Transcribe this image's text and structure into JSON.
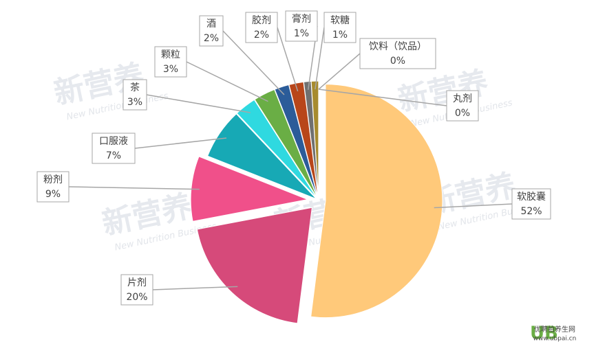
{
  "chart_data": {
    "type": "pie",
    "categories": [
      "软胶囊",
      "片剂",
      "粉剂",
      "口服液",
      "茶",
      "颗粒",
      "酒",
      "胶剂",
      "膏剂",
      "软糖",
      "饮料（饮品）",
      "丸剂"
    ],
    "values": [
      52,
      20,
      9,
      7,
      3,
      3,
      2,
      2,
      1,
      1,
      0,
      0
    ],
    "value_labels": [
      "52%",
      "20%",
      "9%",
      "7%",
      "3%",
      "3%",
      "2%",
      "2%",
      "1%",
      "1%",
      "0%",
      "0%"
    ],
    "colors": [
      "#ffc97a",
      "#d64a7a",
      "#f0508a",
      "#17a9b5",
      "#2fd9e0",
      "#6aae45",
      "#2b5c99",
      "#b8461a",
      "#707070",
      "#a78b2e",
      "#3f6e3a",
      "#264478"
    ]
  },
  "watermark": {
    "cn": "新营养",
    "en": "New Nutrition Business"
  },
  "site_logo": {
    "mark": "UB",
    "name": "优聘拍养生网",
    "url": "www.ubpai.cn"
  }
}
